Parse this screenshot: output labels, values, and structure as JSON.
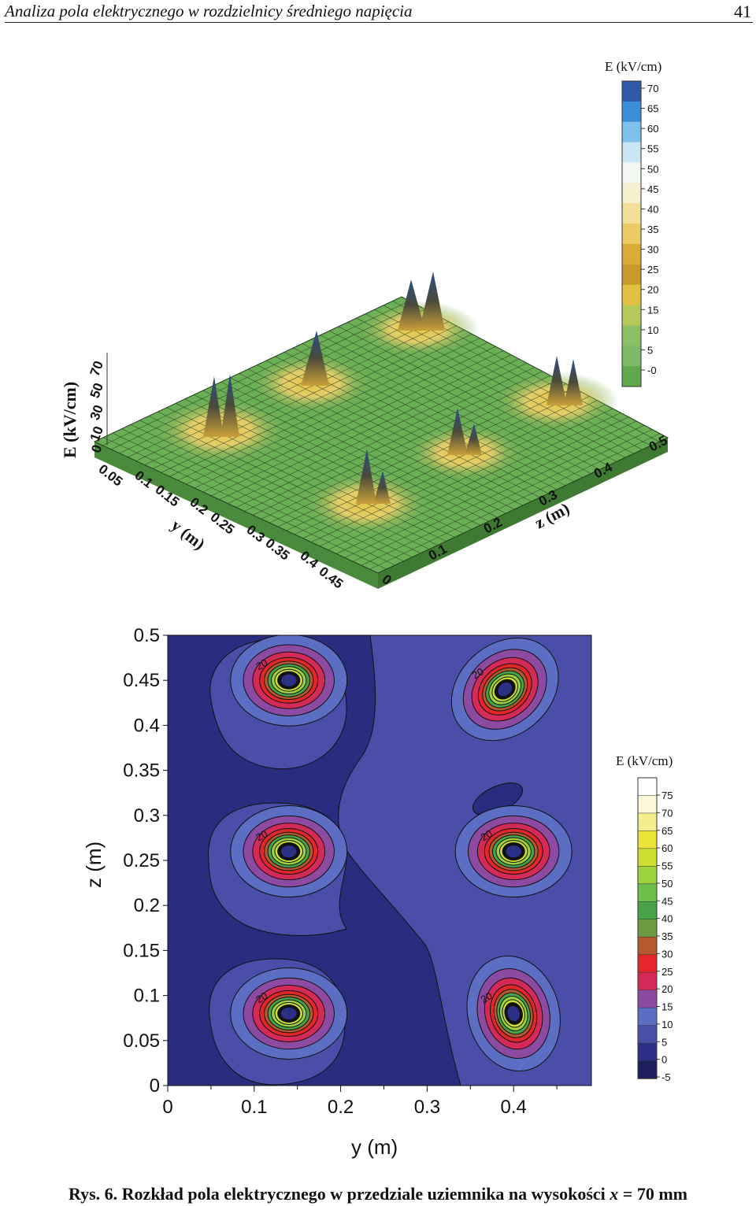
{
  "header": {
    "running_title": "Analiza pola elektrycznego w rozdzielnicy średniego napięcia",
    "page_number": "41"
  },
  "surface_plot": {
    "colorbar_title": "E (kV/cm)",
    "colorbar_ticks": [
      "70",
      "65",
      "60",
      "55",
      "50",
      "45",
      "40",
      "35",
      "30",
      "25",
      "20",
      "15",
      "10",
      "5",
      "0"
    ],
    "colorbar_colors": [
      "#2e5aa8",
      "#3a8fd6",
      "#7fc1ea",
      "#c9e6f3",
      "#f2f7f2",
      "#f5efd0",
      "#f3df9a",
      "#eccb66",
      "#d9ac36",
      "#c89a2c",
      "#e0c040",
      "#b5c85a",
      "#8cc068",
      "#7dbb68",
      "#5fa84c"
    ],
    "e_axis_label": "E (kV/cm)",
    "e_axis_ticks": [
      "70",
      "50",
      "30",
      "10",
      "0"
    ],
    "y_axis_label": "y (m)",
    "y_axis_ticks": [
      "0.05",
      "0.1",
      "0.15",
      "0.2",
      "0.25",
      "0.3",
      "0.35",
      "0.4",
      "0.45",
      "0"
    ],
    "z_axis_label": "z (m)",
    "z_axis_ticks": [
      "0.1",
      "0.2",
      "0.3",
      "0.4",
      "0.5"
    ]
  },
  "chart_data": [
    {
      "type": "surface3d",
      "title": "",
      "xlabel": "y (m)",
      "ylabel": "z (m)",
      "zlabel": "E (kV/cm)",
      "xlim": [
        0,
        0.5
      ],
      "ylim": [
        0,
        0.5
      ],
      "zlim": [
        0,
        70
      ],
      "colorbar_range": [
        0,
        70
      ],
      "peaks": [
        {
          "y": 0.13,
          "z": 0.45,
          "E": 70
        },
        {
          "y": 0.13,
          "z": 0.26,
          "E": 60
        },
        {
          "y": 0.13,
          "z": 0.07,
          "E": 65
        },
        {
          "y": 0.39,
          "z": 0.44,
          "E": 60
        },
        {
          "y": 0.39,
          "z": 0.25,
          "E": 50
        },
        {
          "y": 0.4,
          "z": 0.06,
          "E": 55
        }
      ]
    },
    {
      "type": "contour",
      "xlabel": "y (m)",
      "ylabel": "z (m)",
      "xlim": [
        0,
        0.49
      ],
      "ylim": [
        0,
        0.5
      ],
      "x_ticks": [
        "0",
        "0.1",
        "0.2",
        "0.3",
        "0.4"
      ],
      "y_ticks": [
        "0",
        "0.05",
        "0.1",
        "0.15",
        "0.2",
        "0.25",
        "0.3",
        "0.35",
        "0.4",
        "0.45",
        "0.5"
      ],
      "contour_labels": [
        "20",
        "20",
        "20",
        "20",
        "20",
        "20"
      ],
      "colorbar_title": "E (kV/cm)",
      "colorbar_ticks": [
        "75",
        "70",
        "65",
        "60",
        "55",
        "50",
        "45",
        "40",
        "35",
        "30",
        "25",
        "20",
        "15",
        "10",
        "5",
        "0",
        "-5"
      ],
      "colorbar_colors": [
        "#ffffff",
        "#fdf9d8",
        "#f4ee8e",
        "#e9e33a",
        "#cddf32",
        "#9cd23c",
        "#6cbf4a",
        "#48a348",
        "#6c9a43",
        "#b45a2c",
        "#e2262a",
        "#d42a57",
        "#8c4aa0",
        "#5c6ec4",
        "#4850a8",
        "#2c2f86",
        "#1d1f5e"
      ],
      "peaks": [
        {
          "y": 0.14,
          "z": 0.45
        },
        {
          "y": 0.14,
          "z": 0.26
        },
        {
          "y": 0.14,
          "z": 0.08
        },
        {
          "y": 0.39,
          "z": 0.44
        },
        {
          "y": 0.4,
          "z": 0.26
        },
        {
          "y": 0.4,
          "z": 0.08
        }
      ]
    }
  ],
  "caption": {
    "prefix": "Rys. 6. Rozkład pola elektrycznego w przedziale uziemnika na wysokości",
    "variable": "x",
    "suffix": "= 70 mm"
  }
}
